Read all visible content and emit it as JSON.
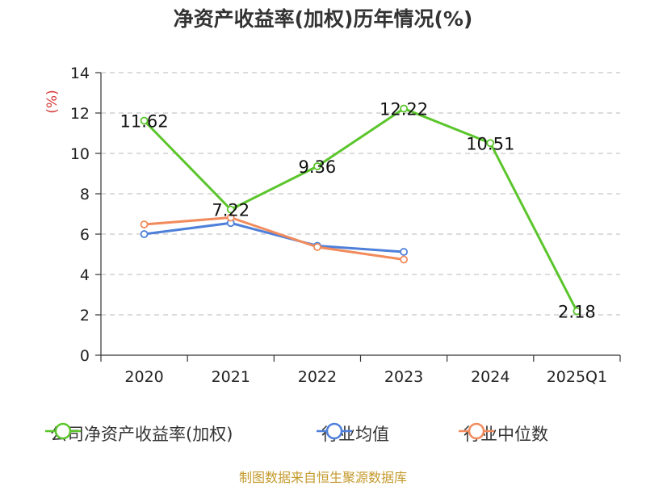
{
  "title": "净资产收益率(加权)历年情况(%)",
  "source": "制图数据来自恒生聚源数据库",
  "chart_data": {
    "type": "line",
    "title": "净资产收益率(加权)历年情况(%)",
    "ylabel": "(%)",
    "ylim": [
      0,
      14
    ],
    "yticks": [
      0,
      2,
      4,
      6,
      8,
      10,
      12,
      14
    ],
    "grid": true,
    "legend": "bottom",
    "categories": [
      "2020",
      "2021",
      "2022",
      "2023",
      "2024",
      "2025Q1"
    ],
    "series": [
      {
        "name": "公司净资产收益率(加权)",
        "color": "#5bc52c",
        "values": [
          11.62,
          7.22,
          9.36,
          12.22,
          10.51,
          2.18
        ],
        "labels": [
          "11.62",
          "7.22",
          "9.36",
          "12.22",
          "10.51",
          "2.18"
        ]
      },
      {
        "name": "行业均值",
        "color": "#4e7fd9",
        "values": [
          6.0,
          6.55,
          5.42,
          5.12,
          null,
          null
        ]
      },
      {
        "name": "行业中位数",
        "color": "#f28b5c",
        "values": [
          6.48,
          6.82,
          5.36,
          4.74,
          null,
          null
        ]
      }
    ]
  }
}
